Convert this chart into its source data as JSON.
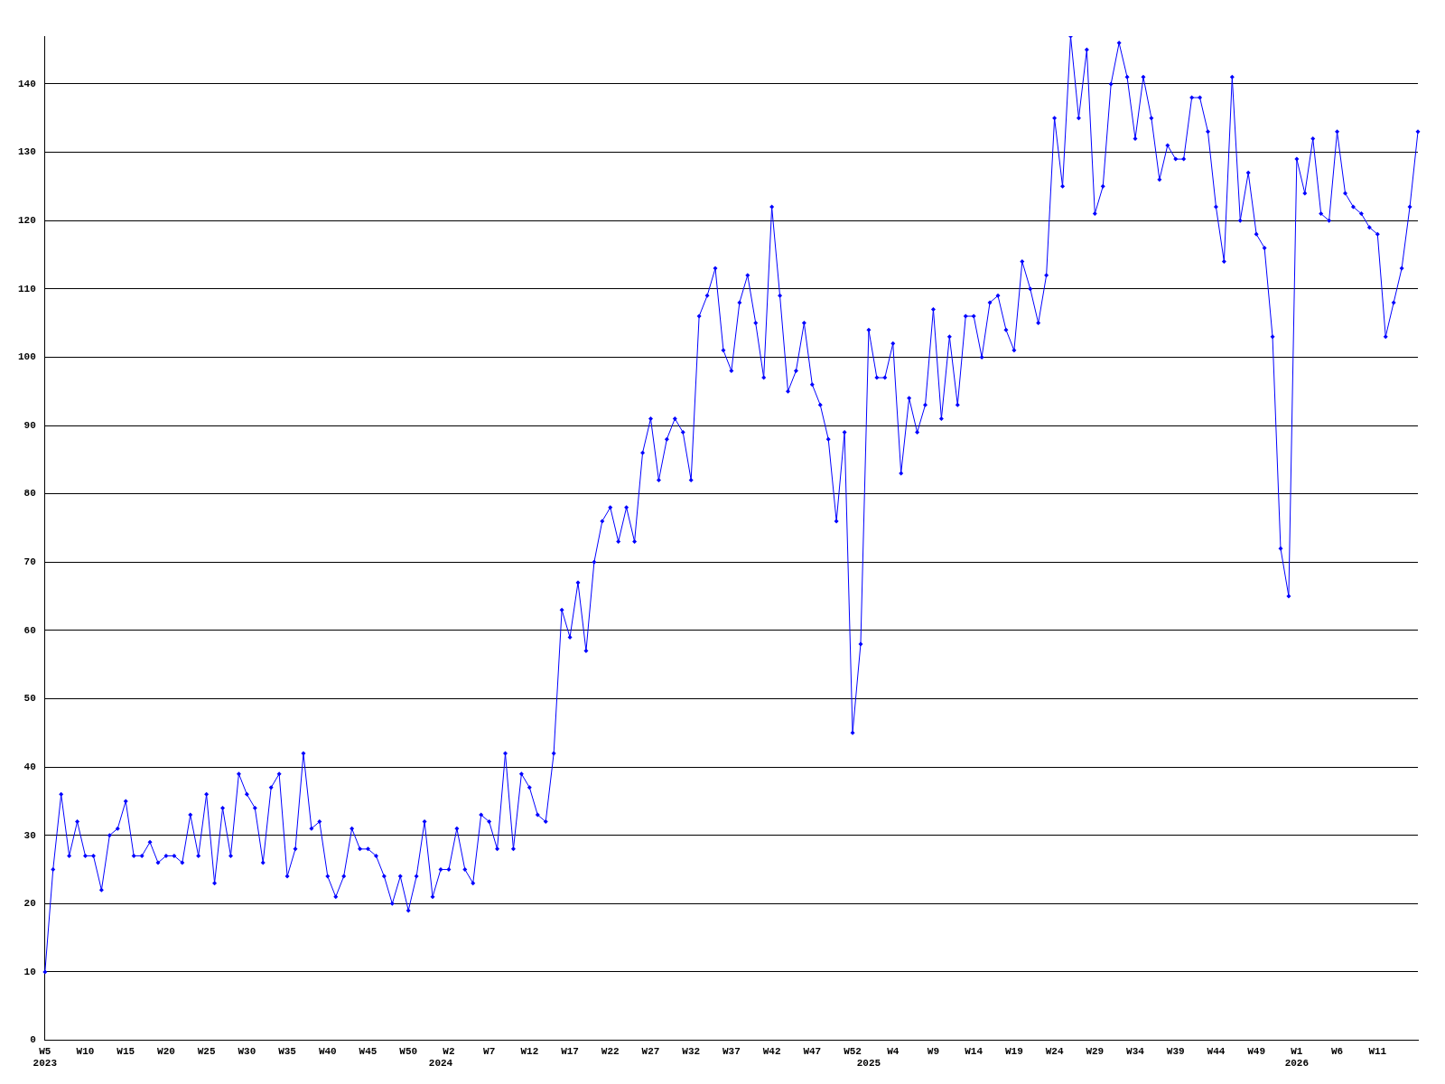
{
  "chart_data": {
    "type": "line",
    "categories": [
      "W5\n2023",
      null,
      null,
      null,
      null,
      "W10",
      null,
      null,
      null,
      null,
      "W15",
      null,
      null,
      null,
      null,
      "W20",
      null,
      null,
      null,
      null,
      "W25",
      null,
      null,
      null,
      null,
      "W30",
      null,
      null,
      null,
      null,
      "W35",
      null,
      null,
      null,
      null,
      "W40",
      null,
      null,
      null,
      null,
      "W45",
      null,
      null,
      null,
      null,
      "W50",
      null,
      null,
      null,
      "\n2024",
      "W2",
      null,
      null,
      null,
      null,
      "W7",
      null,
      null,
      null,
      null,
      "W12",
      null,
      null,
      null,
      null,
      "W17",
      null,
      null,
      null,
      null,
      "W22",
      null,
      null,
      null,
      null,
      "W27",
      null,
      null,
      null,
      null,
      "W32",
      null,
      null,
      null,
      null,
      "W37",
      null,
      null,
      null,
      null,
      "W42",
      null,
      null,
      null,
      null,
      "W47",
      null,
      null,
      null,
      null,
      "W52",
      null,
      "\n2025",
      null,
      null,
      "W4",
      null,
      null,
      null,
      null,
      "W9",
      null,
      null,
      null,
      null,
      "W14",
      null,
      null,
      null,
      null,
      "W19",
      null,
      null,
      null,
      null,
      "W24",
      null,
      null,
      null,
      null,
      "W29",
      null,
      null,
      null,
      null,
      "W34",
      null,
      null,
      null,
      null,
      "W39",
      null,
      null,
      null,
      null,
      "W44",
      null,
      null,
      null,
      null,
      "W49",
      null,
      null,
      null,
      null,
      "W1\n2026",
      null,
      null,
      null,
      null,
      "W6",
      null,
      null,
      null,
      null,
      "W11",
      null,
      null,
      null,
      null,
      null
    ],
    "values": [
      10,
      25,
      36,
      27,
      32,
      27,
      27,
      22,
      30,
      31,
      35,
      27,
      27,
      29,
      26,
      27,
      27,
      26,
      33,
      27,
      36,
      23,
      34,
      27,
      39,
      36,
      34,
      26,
      37,
      39,
      24,
      28,
      42,
      31,
      32,
      24,
      21,
      24,
      31,
      28,
      28,
      27,
      24,
      20,
      24,
      19,
      24,
      32,
      21,
      25,
      25,
      31,
      25,
      23,
      33,
      32,
      28,
      42,
      28,
      39,
      37,
      33,
      32,
      42,
      63,
      59,
      67,
      57,
      70,
      76,
      78,
      73,
      78,
      73,
      86,
      91,
      82,
      88,
      91,
      89,
      82,
      106,
      109,
      113,
      101,
      98,
      108,
      112,
      105,
      97,
      122,
      109,
      95,
      98,
      105,
      96,
      93,
      88,
      76,
      89,
      45,
      58,
      104,
      97,
      97,
      102,
      83,
      94,
      89,
      93,
      107,
      91,
      103,
      93,
      106,
      106,
      100,
      108,
      109,
      104,
      101,
      114,
      110,
      105,
      112,
      135,
      125,
      147,
      135,
      145,
      121,
      125,
      140,
      146,
      141,
      132,
      141,
      135,
      126,
      131,
      129,
      129,
      138,
      138,
      133,
      122,
      114,
      141,
      120,
      127,
      118,
      116,
      103,
      72,
      65,
      129,
      124,
      132,
      121,
      120,
      133,
      124,
      122,
      121,
      119,
      118,
      103,
      108,
      113,
      122,
      133
    ],
    "color": "#0000ff",
    "ylim": [
      0,
      147
    ],
    "yticks": [
      0,
      10,
      20,
      30,
      40,
      50,
      60,
      70,
      80,
      90,
      100,
      110,
      120,
      130,
      140
    ],
    "grid": "y",
    "marker": "diamond",
    "line_style": "solid"
  }
}
